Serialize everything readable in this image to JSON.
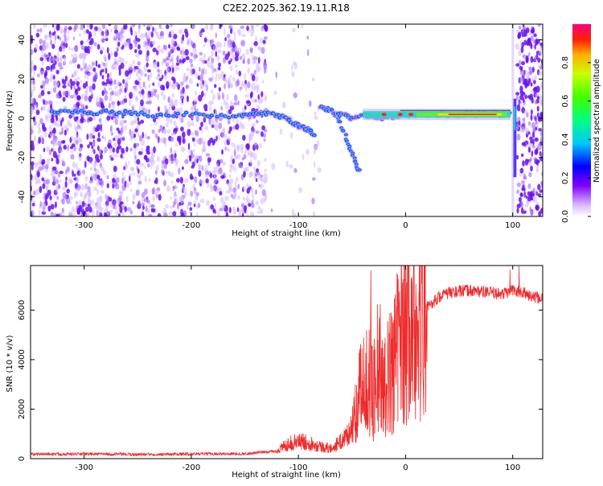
{
  "title": "C2E2.2025.362.19.11.R18",
  "chart_data": [
    {
      "type": "heatmap",
      "xlabel": "Height of straight line (km)",
      "ylabel": "Frequency (Hz)",
      "xlim": [
        -350,
        128
      ],
      "ylim": [
        -50,
        48
      ],
      "xticks": [
        -300,
        -200,
        -100,
        0,
        100
      ],
      "yticks": [
        -40,
        -20,
        0,
        20,
        40
      ],
      "colorbar": {
        "label": "Normalized spectral amplitude",
        "range": [
          0,
          1
        ],
        "ticks": [
          "0.0",
          "0.2",
          "0.4",
          "0.6",
          "0.8"
        ]
      },
      "ridge": {
        "description_points": [
          [
            -330,
            4
          ],
          [
            -300,
            3
          ],
          [
            -270,
            3
          ],
          [
            -240,
            2
          ],
          [
            -200,
            2
          ],
          [
            -160,
            1
          ],
          [
            -140,
            3
          ],
          [
            -120,
            2
          ],
          [
            -105,
            -2
          ],
          [
            -95,
            -5
          ],
          [
            -85,
            -8
          ]
        ],
        "branch_points": [
          [
            -80,
            6
          ],
          [
            -70,
            4
          ],
          [
            -60,
            2
          ],
          [
            -50,
            0
          ],
          [
            -40,
            2
          ],
          [
            -30,
            1
          ],
          [
            -20,
            0
          ],
          [
            0,
            2
          ],
          [
            20,
            2
          ],
          [
            40,
            2
          ],
          [
            60,
            2
          ],
          [
            80,
            2
          ],
          [
            98,
            2
          ]
        ],
        "descending_points": [
          [
            -65,
            2
          ],
          [
            -55,
            -10
          ],
          [
            -48,
            -20
          ],
          [
            -43,
            -28
          ]
        ],
        "spike_x": 102
      },
      "grid": false
    },
    {
      "type": "line",
      "xlabel": "Height of straight line (km)",
      "ylabel": "SNR (10 * v/v)",
      "xlim": [
        -350,
        128
      ],
      "ylim": [
        0,
        7800
      ],
      "xticks": [
        -300,
        -200,
        -100,
        0,
        100
      ],
      "yticks": [
        0,
        2000,
        4000,
        6000
      ],
      "series": [
        {
          "color": "#ee2b2b",
          "envelope": [
            [
              -350,
              180
            ],
            [
              -300,
              190
            ],
            [
              -250,
              170
            ],
            [
              -200,
              190
            ],
            [
              -150,
              200
            ],
            [
              -120,
              300
            ],
            [
              -110,
              600
            ],
            [
              -100,
              700
            ],
            [
              -90,
              650
            ],
            [
              -80,
              500
            ],
            [
              -70,
              400
            ],
            [
              -60,
              700
            ],
            [
              -50,
              1200
            ],
            [
              -45,
              2200
            ],
            [
              -40,
              3000
            ],
            [
              -35,
              3600
            ],
            [
              -30,
              2600
            ],
            [
              -25,
              4500
            ],
            [
              -20,
              2800
            ],
            [
              -15,
              3400
            ],
            [
              -10,
              4200
            ],
            [
              -5,
              5000
            ],
            [
              0,
              5400
            ],
            [
              5,
              4800
            ],
            [
              10,
              5600
            ],
            [
              15,
              6000
            ],
            [
              20,
              6100
            ],
            [
              25,
              6300
            ],
            [
              30,
              6500
            ],
            [
              40,
              6700
            ],
            [
              50,
              6750
            ],
            [
              60,
              6800
            ],
            [
              70,
              6750
            ],
            [
              80,
              6700
            ],
            [
              90,
              6650
            ],
            [
              100,
              6800
            ],
            [
              110,
              6700
            ],
            [
              120,
              6500
            ],
            [
              128,
              6500
            ]
          ]
        }
      ],
      "grid": false
    }
  ]
}
